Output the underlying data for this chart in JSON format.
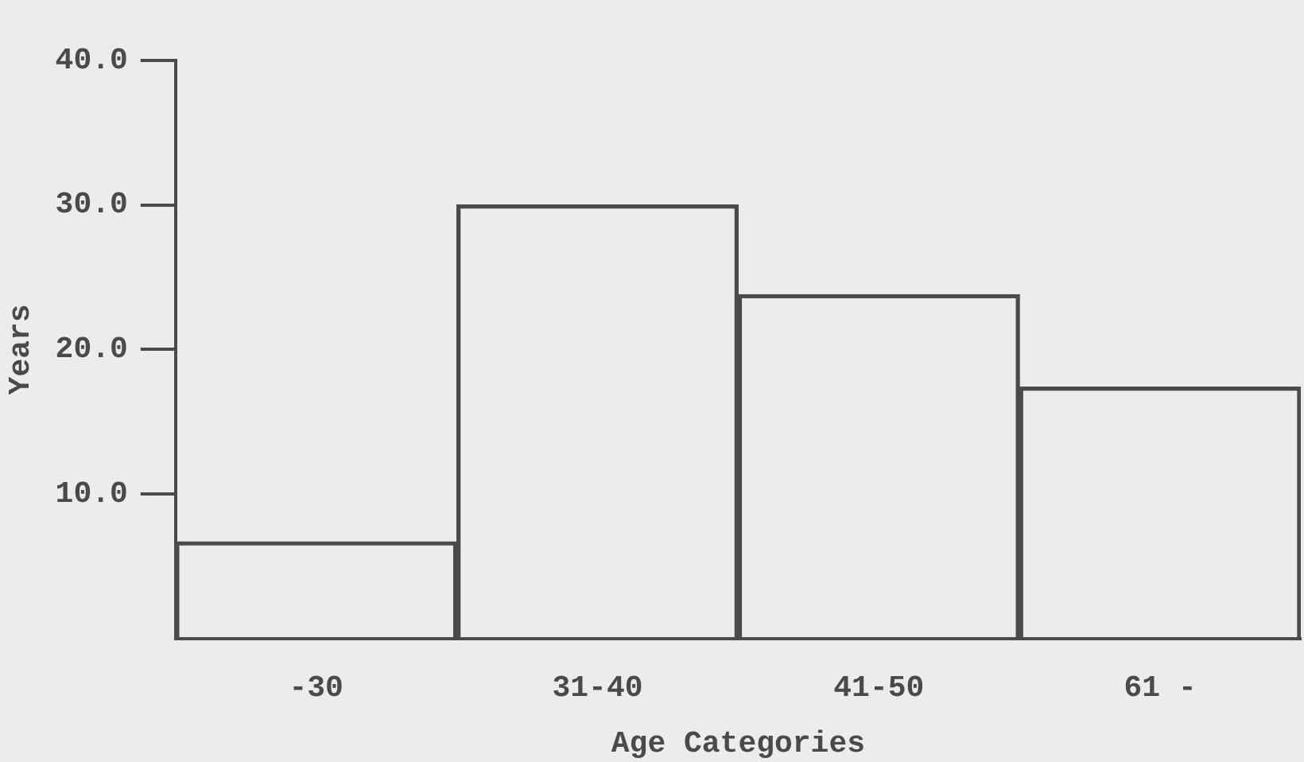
{
  "chart_data": {
    "type": "bar",
    "xlabel": "Age Categories",
    "ylabel": "Years",
    "categories": [
      "-30",
      "31-40",
      "41-50",
      "61 -"
    ],
    "values": [
      6.7,
      30,
      23.8,
      17.4
    ],
    "color": "#4a4a4a",
    "ylim": [
      0,
      40
    ],
    "yticks": [
      {
        "value": 10,
        "label": "10.0"
      },
      {
        "value": 20,
        "label": "20.0"
      },
      {
        "value": 30,
        "label": "30.0"
      },
      {
        "value": 40,
        "label": "40.0"
      }
    ]
  }
}
